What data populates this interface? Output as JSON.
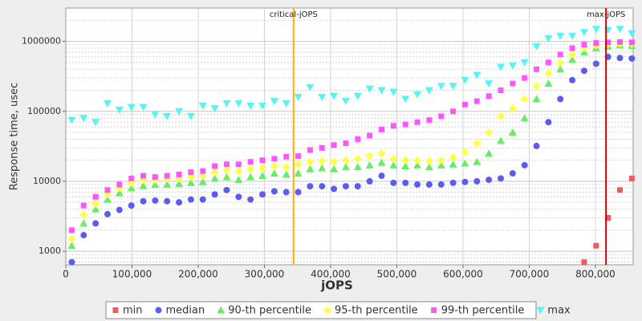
{
  "chart_data": {
    "type": "scatter",
    "ylabel": "Response time, usec",
    "xlabel": "jOPS",
    "log_y": true,
    "grid": true,
    "xlim": [
      0,
      857000
    ],
    "ylim": [
      640,
      3000000
    ],
    "xticks": [
      {
        "value": 0,
        "label": "0"
      },
      {
        "value": 100000,
        "label": "100,000"
      },
      {
        "value": 200000,
        "label": "200,000"
      },
      {
        "value": 300000,
        "label": "300,000"
      },
      {
        "value": 400000,
        "label": "400,000"
      },
      {
        "value": 500000,
        "label": "500,000"
      },
      {
        "value": 600000,
        "label": "600,000"
      },
      {
        "value": 700000,
        "label": "700,000"
      },
      {
        "value": 800000,
        "label": "800,000"
      }
    ],
    "yticks": [
      1000,
      10000,
      100000,
      1000000
    ],
    "y_minor_ticks": [
      700,
      800,
      900,
      2000,
      3000,
      4000,
      5000,
      6000,
      7000,
      8000,
      9000,
      20000,
      30000,
      40000,
      50000,
      60000,
      70000,
      80000,
      90000,
      200000,
      300000,
      400000,
      500000,
      600000,
      700000,
      800000,
      900000,
      2000000,
      3000000
    ],
    "annotations": [
      {
        "value": 344000,
        "label": "critical-jOPS",
        "color": "#ffb000"
      },
      {
        "value": 816000,
        "label": "max-jOPS",
        "color": "#cc0000"
      }
    ],
    "x": [
      9000,
      27000,
      45000,
      63000,
      81000,
      99000,
      117000,
      135000,
      153000,
      171000,
      189000,
      207000,
      225000,
      243000,
      261000,
      279000,
      297000,
      315000,
      333000,
      351000,
      369000,
      387000,
      405000,
      423000,
      441000,
      459000,
      477000,
      495000,
      513000,
      531000,
      549000,
      567000,
      585000,
      603000,
      621000,
      639000,
      657000,
      675000,
      693000,
      711000,
      729000,
      747000,
      765000,
      783000,
      801000,
      819000,
      837000,
      855000
    ],
    "series": [
      {
        "name": "min",
        "color": "#f05a5a",
        "marker": "square",
        "values": [
          null,
          null,
          null,
          null,
          null,
          null,
          null,
          null,
          null,
          null,
          null,
          null,
          null,
          null,
          null,
          null,
          null,
          null,
          null,
          null,
          null,
          null,
          null,
          null,
          null,
          null,
          null,
          null,
          null,
          null,
          null,
          null,
          null,
          null,
          null,
          null,
          null,
          null,
          null,
          null,
          null,
          null,
          null,
          700,
          1200,
          3000,
          7500,
          11000
        ]
      },
      {
        "name": "median",
        "color": "#5c5cf0",
        "marker": "circle",
        "values": [
          700,
          1700,
          2500,
          3400,
          3900,
          4500,
          5200,
          5300,
          5200,
          5000,
          5500,
          5500,
          6500,
          7500,
          6000,
          5500,
          6500,
          7200,
          7000,
          7000,
          8500,
          8500,
          7800,
          8500,
          8500,
          10000,
          12000,
          9500,
          9500,
          9000,
          9000,
          9000,
          9500,
          9800,
          10000,
          10500,
          11000,
          13000,
          17000,
          32000,
          70000,
          150000,
          280000,
          380000,
          480000,
          600000,
          580000,
          570000
        ]
      },
      {
        "name": "90-th percentile",
        "color": "#66ee66",
        "marker": "triangle",
        "values": [
          1200,
          2500,
          4000,
          5500,
          6800,
          8000,
          8600,
          9000,
          9000,
          9200,
          9500,
          9800,
          11000,
          11500,
          10500,
          11500,
          12000,
          13000,
          12500,
          13000,
          15000,
          15500,
          15000,
          16000,
          16000,
          17000,
          18500,
          17000,
          16500,
          17000,
          16000,
          17000,
          17500,
          18000,
          19000,
          25000,
          38000,
          50000,
          80000,
          150000,
          250000,
          400000,
          550000,
          700000,
          800000,
          850000,
          880000,
          870000
        ]
      },
      {
        "name": "95-th percentile",
        "color": "#ffff44",
        "marker": "diamond",
        "values": [
          1500,
          3300,
          4800,
          6500,
          8000,
          9500,
          10500,
          10500,
          11000,
          11000,
          11500,
          12000,
          13500,
          14500,
          14000,
          15000,
          15500,
          16500,
          16000,
          17500,
          19000,
          19500,
          19000,
          20000,
          21000,
          23000,
          25000,
          21000,
          20000,
          20000,
          19500,
          20000,
          22000,
          26000,
          35000,
          50000,
          85000,
          110000,
          150000,
          230000,
          350000,
          500000,
          650000,
          800000,
          880000,
          920000,
          930000,
          920000
        ]
      },
      {
        "name": "99-th percentile",
        "color": "#ff55ff",
        "marker": "square",
        "values": [
          2000,
          4500,
          6000,
          7500,
          9000,
          11000,
          12000,
          11500,
          12000,
          12500,
          13500,
          14000,
          16500,
          17500,
          17500,
          19000,
          20000,
          21000,
          22500,
          23000,
          28000,
          30000,
          33000,
          35000,
          40000,
          45000,
          55000,
          62000,
          65000,
          70000,
          75000,
          85000,
          100000,
          125000,
          140000,
          165000,
          200000,
          250000,
          300000,
          400000,
          500000,
          650000,
          800000,
          900000,
          950000,
          970000,
          980000,
          970000
        ]
      },
      {
        "name": "max",
        "color": "#55f5f5",
        "marker": "triangle-down",
        "values": [
          75000,
          80000,
          70000,
          130000,
          105000,
          115000,
          115000,
          90000,
          85000,
          100000,
          85000,
          120000,
          110000,
          130000,
          130000,
          120000,
          120000,
          140000,
          130000,
          160000,
          220000,
          160000,
          165000,
          140000,
          165000,
          210000,
          200000,
          190000,
          150000,
          175000,
          200000,
          230000,
          230000,
          280000,
          330000,
          250000,
          430000,
          450000,
          500000,
          850000,
          1100000,
          1200000,
          1200000,
          1350000,
          1500000,
          1450000,
          1500000,
          1300000
        ]
      }
    ]
  }
}
